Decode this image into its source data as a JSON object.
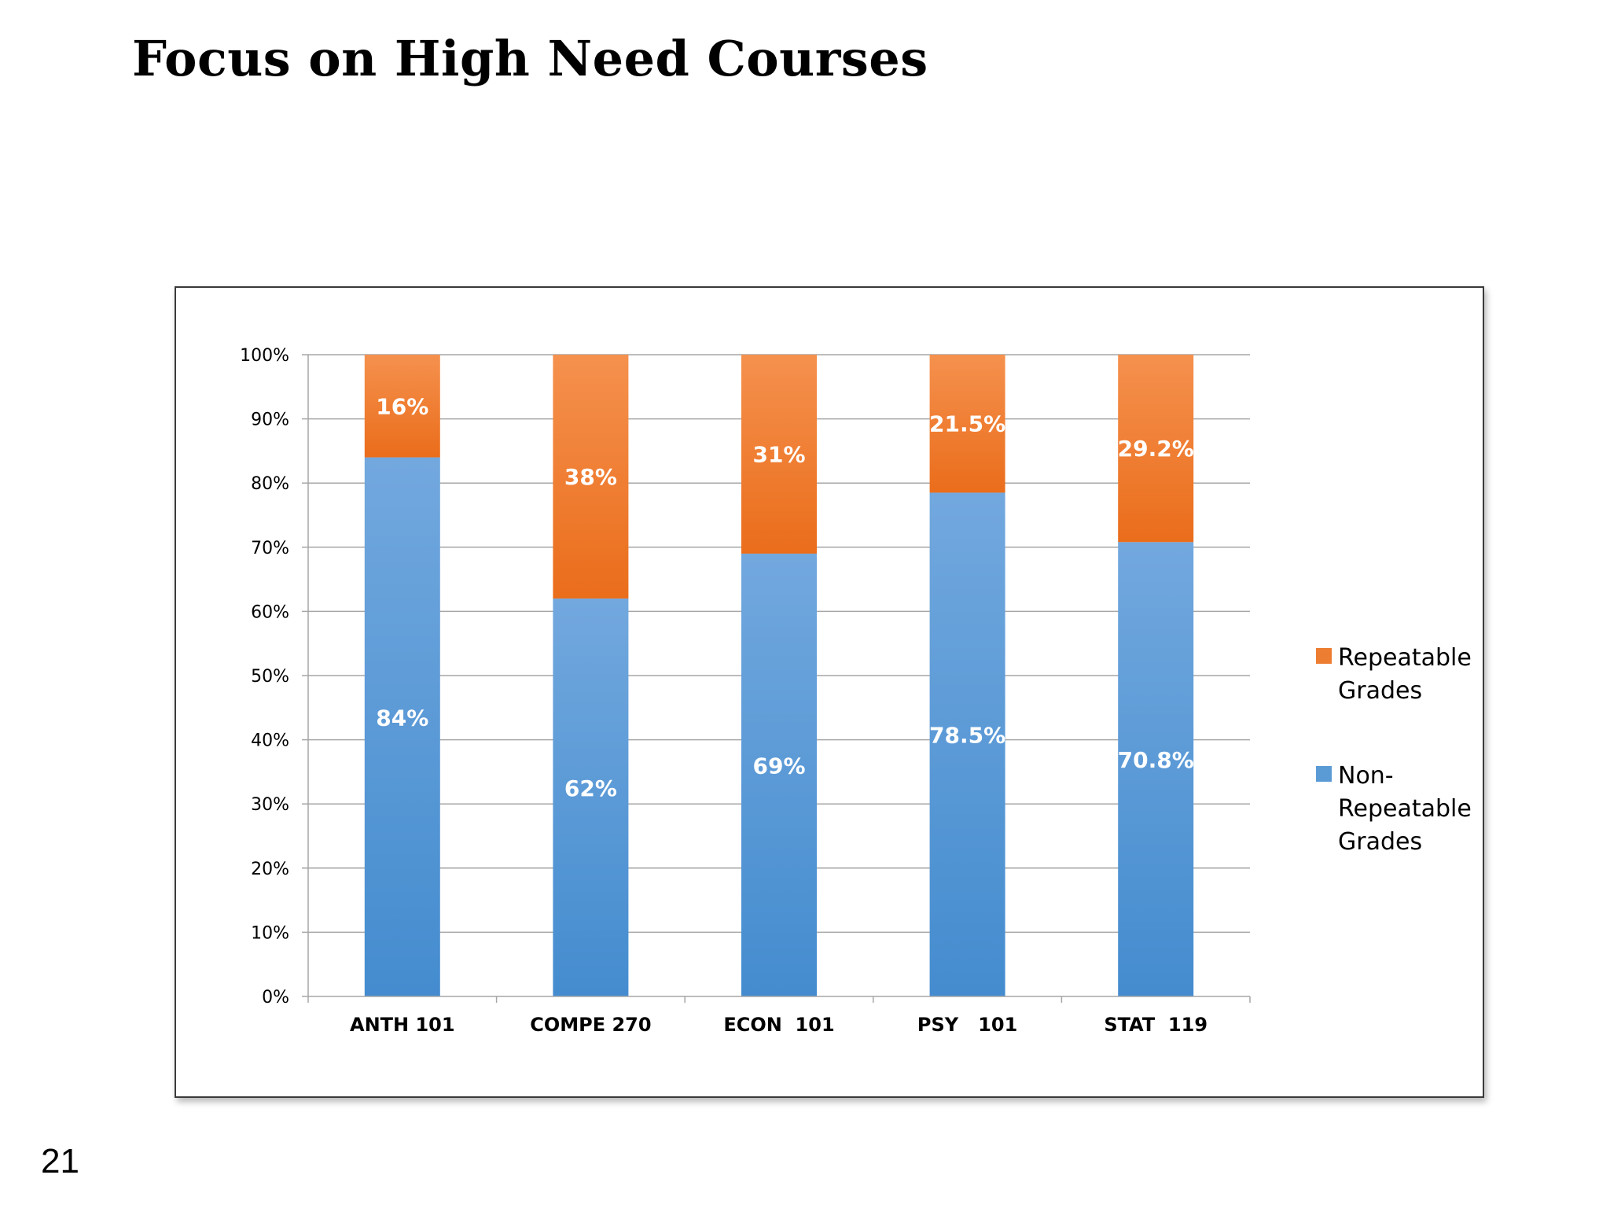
{
  "slide": {
    "title": "Focus on High Need Courses",
    "number": "21"
  },
  "colors": {
    "repeatable_top": "#F5914E",
    "repeatable_bottom": "#EA6D1B",
    "nonrepeatable_top": "#72A8DE",
    "nonrepeatable_bottom": "#448CCF",
    "legend_repeatable": "#ED7D31",
    "legend_nonrepeatable": "#5B9BD5",
    "grid": "#A6A6A6",
    "axis_text": "#000000",
    "data_label": "#FFFFFF"
  },
  "chart_data": {
    "type": "bar",
    "stacked": "percent",
    "categories": [
      "ANTH 101",
      "COMPE 270",
      "ECON  101",
      "PSY   101",
      "STAT  119"
    ],
    "series": [
      {
        "name": "Non-Repeatable Grades",
        "values": [
          84,
          62,
          69,
          78.5,
          70.8
        ],
        "labels": [
          "84%",
          "62%",
          "69%",
          "78.5%",
          "70.8%"
        ]
      },
      {
        "name": "Repeatable Grades",
        "values": [
          16,
          38,
          31,
          21.5,
          29.2
        ],
        "labels": [
          "16%",
          "38%",
          "31%",
          "21.5%",
          "29.2%"
        ]
      }
    ],
    "y_ticks": [
      "0%",
      "10%",
      "20%",
      "30%",
      "40%",
      "50%",
      "60%",
      "70%",
      "80%",
      "90%",
      "100%"
    ],
    "ylim": [
      0,
      100
    ],
    "grid": true,
    "legend": {
      "position": "right",
      "entries": [
        {
          "series": "Repeatable Grades",
          "lines": [
            "Repeatable",
            "Grades"
          ]
        },
        {
          "series": "Non-Repeatable Grades",
          "lines": [
            "Non-",
            "Repeatable",
            "Grades"
          ]
        }
      ]
    }
  }
}
